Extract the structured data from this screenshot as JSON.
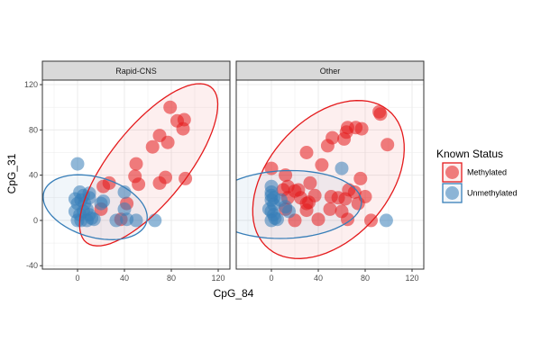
{
  "colors": {
    "methylated": "#e41a1c",
    "unmethylated": "#377eb8",
    "strip_fill": "#d9d9d9",
    "grid": "#ebebeb",
    "panel_border": "#333333"
  },
  "legend": {
    "title": "Known Status",
    "items": [
      {
        "label": "Methylated",
        "color": "#e41a1c"
      },
      {
        "label": "Unmethylated",
        "color": "#377eb8"
      }
    ]
  },
  "chart_data": {
    "type": "scatter",
    "xlabel": "CpG_84",
    "ylabel": "CpG_31",
    "xlim": [
      -30,
      130
    ],
    "ylim": [
      -43,
      124
    ],
    "x_ticks": [
      0,
      40,
      80,
      120
    ],
    "y_ticks": [
      -40,
      0,
      40,
      80,
      120
    ],
    "x_tick_labels": [
      "0",
      "40",
      "80",
      "120"
    ],
    "y_tick_labels": [
      "-40",
      "0",
      "40",
      "80",
      "120"
    ],
    "grid": true,
    "legend_position": "right",
    "ellipses": "95% confidence ellipse per status",
    "panels": [
      {
        "title": "Rapid-CNS",
        "series": [
          {
            "name": "Methylated",
            "points": [
              [
                79,
                100
              ],
              [
                85,
                88
              ],
              [
                91,
                89
              ],
              [
                90,
                81
              ],
              [
                70,
                75
              ],
              [
                77,
                69
              ],
              [
                64,
                65
              ],
              [
                50,
                50
              ],
              [
                49,
                39
              ],
              [
                52,
                32
              ],
              [
                70,
                33
              ],
              [
                75,
                38
              ],
              [
                92,
                37
              ],
              [
                27,
                33
              ],
              [
                22,
                30
              ],
              [
                20,
                10
              ],
              [
                42,
                15
              ],
              [
                37,
                1
              ]
            ]
          },
          {
            "name": "Unmethylated",
            "points": [
              [
                0,
                50
              ],
              [
                2,
                25
              ],
              [
                5,
                22
              ],
              [
                10,
                20
              ],
              [
                10,
                24
              ],
              [
                -2,
                19
              ],
              [
                0,
                15
              ],
              [
                3,
                18
              ],
              [
                6,
                15
              ],
              [
                8,
                10
              ],
              [
                -2,
                8
              ],
              [
                2,
                5
              ],
              [
                5,
                8
              ],
              [
                10,
                5
              ],
              [
                12,
                2
              ],
              [
                0,
                0
              ],
              [
                3,
                0
              ],
              [
                8,
                0
              ],
              [
                14,
                1
              ],
              [
                22,
                17
              ],
              [
                20,
                15
              ],
              [
                40,
                25
              ],
              [
                40,
                10
              ],
              [
                42,
                1
              ],
              [
                33,
                0
              ],
              [
                50,
                0
              ],
              [
                66,
                0
              ]
            ]
          }
        ]
      },
      {
        "title": "Other",
        "series": [
          {
            "name": "Methylated",
            "points": [
              [
                92,
                96
              ],
              [
                93,
                94
              ],
              [
                65,
                82
              ],
              [
                72,
                82
              ],
              [
                77,
                81
              ],
              [
                64,
                78
              ],
              [
                62,
                72
              ],
              [
                52,
                73
              ],
              [
                48,
                66
              ],
              [
                30,
                60
              ],
              [
                99,
                67
              ],
              [
                43,
                49
              ],
              [
                0,
                46
              ],
              [
                12,
                40
              ],
              [
                76,
                37
              ],
              [
                10,
                27
              ],
              [
                14,
                30
              ],
              [
                20,
                26
              ],
              [
                23,
                27
              ],
              [
                25,
                20
              ],
              [
                30,
                15
              ],
              [
                32,
                16
              ],
              [
                33,
                33
              ],
              [
                37,
                22
              ],
              [
                51,
                21
              ],
              [
                57,
                20
              ],
              [
                63,
                19
              ],
              [
                66,
                27
              ],
              [
                71,
                25
              ],
              [
                80,
                21
              ],
              [
                74,
                15
              ],
              [
                12,
                10
              ],
              [
                14,
                20
              ],
              [
                20,
                0
              ],
              [
                30,
                9
              ],
              [
                40,
                1
              ],
              [
                50,
                10
              ],
              [
                60,
                8
              ],
              [
                65,
                1
              ],
              [
                85,
                0
              ]
            ]
          },
          {
            "name": "Unmethylated",
            "points": [
              [
                0,
                30
              ],
              [
                0,
                25
              ],
              [
                0,
                22
              ],
              [
                2,
                20
              ],
              [
                0,
                18
              ],
              [
                2,
                14
              ],
              [
                -2,
                10
              ],
              [
                0,
                8
              ],
              [
                2,
                5
              ],
              [
                3,
                2
              ],
              [
                0,
                0
              ],
              [
                5,
                1
              ],
              [
                8,
                18
              ],
              [
                12,
                12
              ],
              [
                15,
                8
              ],
              [
                60,
                46
              ],
              [
                98,
                0
              ]
            ]
          }
        ]
      }
    ]
  }
}
